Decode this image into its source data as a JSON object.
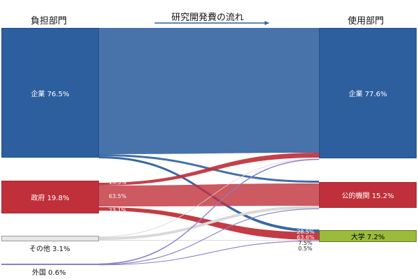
{
  "headers": {
    "source": "負担部門",
    "flow_title": "研究開発費の流れ",
    "use": "使用部門"
  },
  "sources": [
    {
      "name": "企業 76.5%",
      "color": "#2d5f9e"
    },
    {
      "name": "政府 19.8%",
      "color": "#c0303a"
    },
    {
      "name": "その他 3.1%",
      "color": "#e6e6e6"
    },
    {
      "name": "外国 0.6%",
      "color": "#8c7fc9"
    }
  ],
  "uses": [
    {
      "name": "企業 77.6%",
      "color": "#2d5f9e"
    },
    {
      "name": "公的機関 15.2%",
      "color": "#c0303a"
    },
    {
      "name": "大学 7.2%",
      "color": "#9bbb3c"
    }
  ],
  "flows": [
    {
      "from": "企業",
      "to": "企業",
      "color": "#2d5f9e"
    },
    {
      "from": "企業",
      "to": "公的機関",
      "color": "#2d5f9e"
    },
    {
      "from": "企業",
      "to": "大学",
      "color": "#2d5f9e"
    },
    {
      "from": "政府",
      "to": "企業",
      "color": "#c0303a"
    },
    {
      "from": "政府",
      "to": "公的機関",
      "color": "#c0303a"
    },
    {
      "from": "政府",
      "to": "大学",
      "color": "#c0303a"
    },
    {
      "from": "その他",
      "to": "企業",
      "color": "#d9d9d9"
    },
    {
      "from": "その他",
      "to": "公的機関",
      "color": "#d9d9d9"
    },
    {
      "from": "その他",
      "to": "大学",
      "color": "#d9d9d9"
    },
    {
      "from": "外国",
      "to": "企業",
      "color": "#8c7fc9"
    },
    {
      "from": "外国",
      "to": "公的機関",
      "color": "#8c7fc9"
    },
    {
      "from": "外国",
      "to": "大学",
      "color": "#8c7fc9"
    }
  ],
  "government_breakdown": {
    "to_business": "13.5%",
    "to_public": "63.5%",
    "to_university": "23.1%"
  },
  "university_breakdown": {
    "from_business": "28.5%",
    "from_government": "63.6%",
    "from_other": "7.5%",
    "from_foreign": "0.5%"
  }
}
